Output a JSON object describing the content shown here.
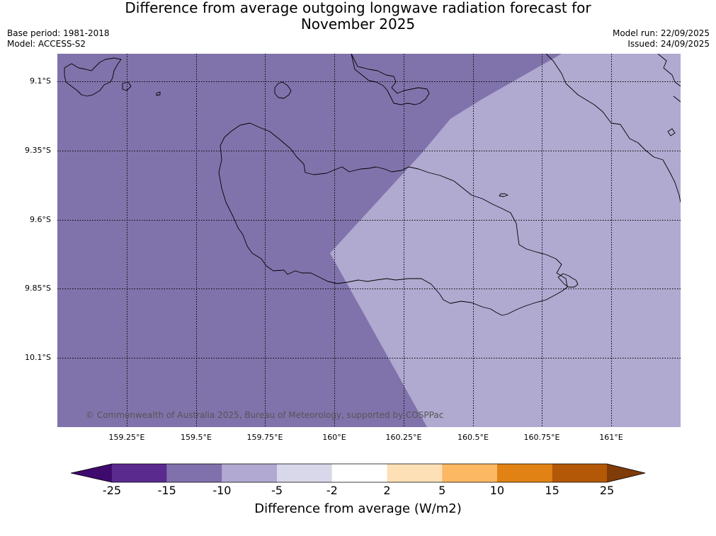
{
  "title_line1": "Difference from average outgoing longwave radiation forecast for",
  "title_line2": "November 2025",
  "meta": {
    "base_period": "Base period: 1981-2018",
    "model": "Model: ACCESS-S2",
    "model_run": "Model run: 22/09/2025",
    "issued": "Issued: 24/09/2025"
  },
  "copyright": "© Commonwealth of Australia 2025, Bureau of Meteorology, supported by COSPPac",
  "axes": {
    "lat_labels": [
      "9.1°S",
      "9.35°S",
      "9.6°S",
      "9.85°S",
      "10.1°S"
    ],
    "lon_labels": [
      "159.25°E",
      "159.5°E",
      "159.75°E",
      "160°E",
      "160.25°E",
      "160.5°E",
      "160.75°E",
      "161°E"
    ]
  },
  "colorbar": {
    "label": "Difference from average (W/m2)",
    "ticks": [
      "-25",
      "-15",
      "-10",
      "-5",
      "-2",
      "2",
      "5",
      "10",
      "15",
      "25"
    ],
    "colors": [
      "#3f0a6e",
      "#5a2a8e",
      "#8070ac",
      "#b1a9d1",
      "#d9d8ea",
      "#ffffff",
      "#fee0b6",
      "#fdb863",
      "#e08214",
      "#b35806",
      "#7f3b08"
    ]
  },
  "field": {
    "region_colors": {
      "-15 to -10": "#8073ab",
      "-10 to -5": "#b0a9d0"
    }
  }
}
